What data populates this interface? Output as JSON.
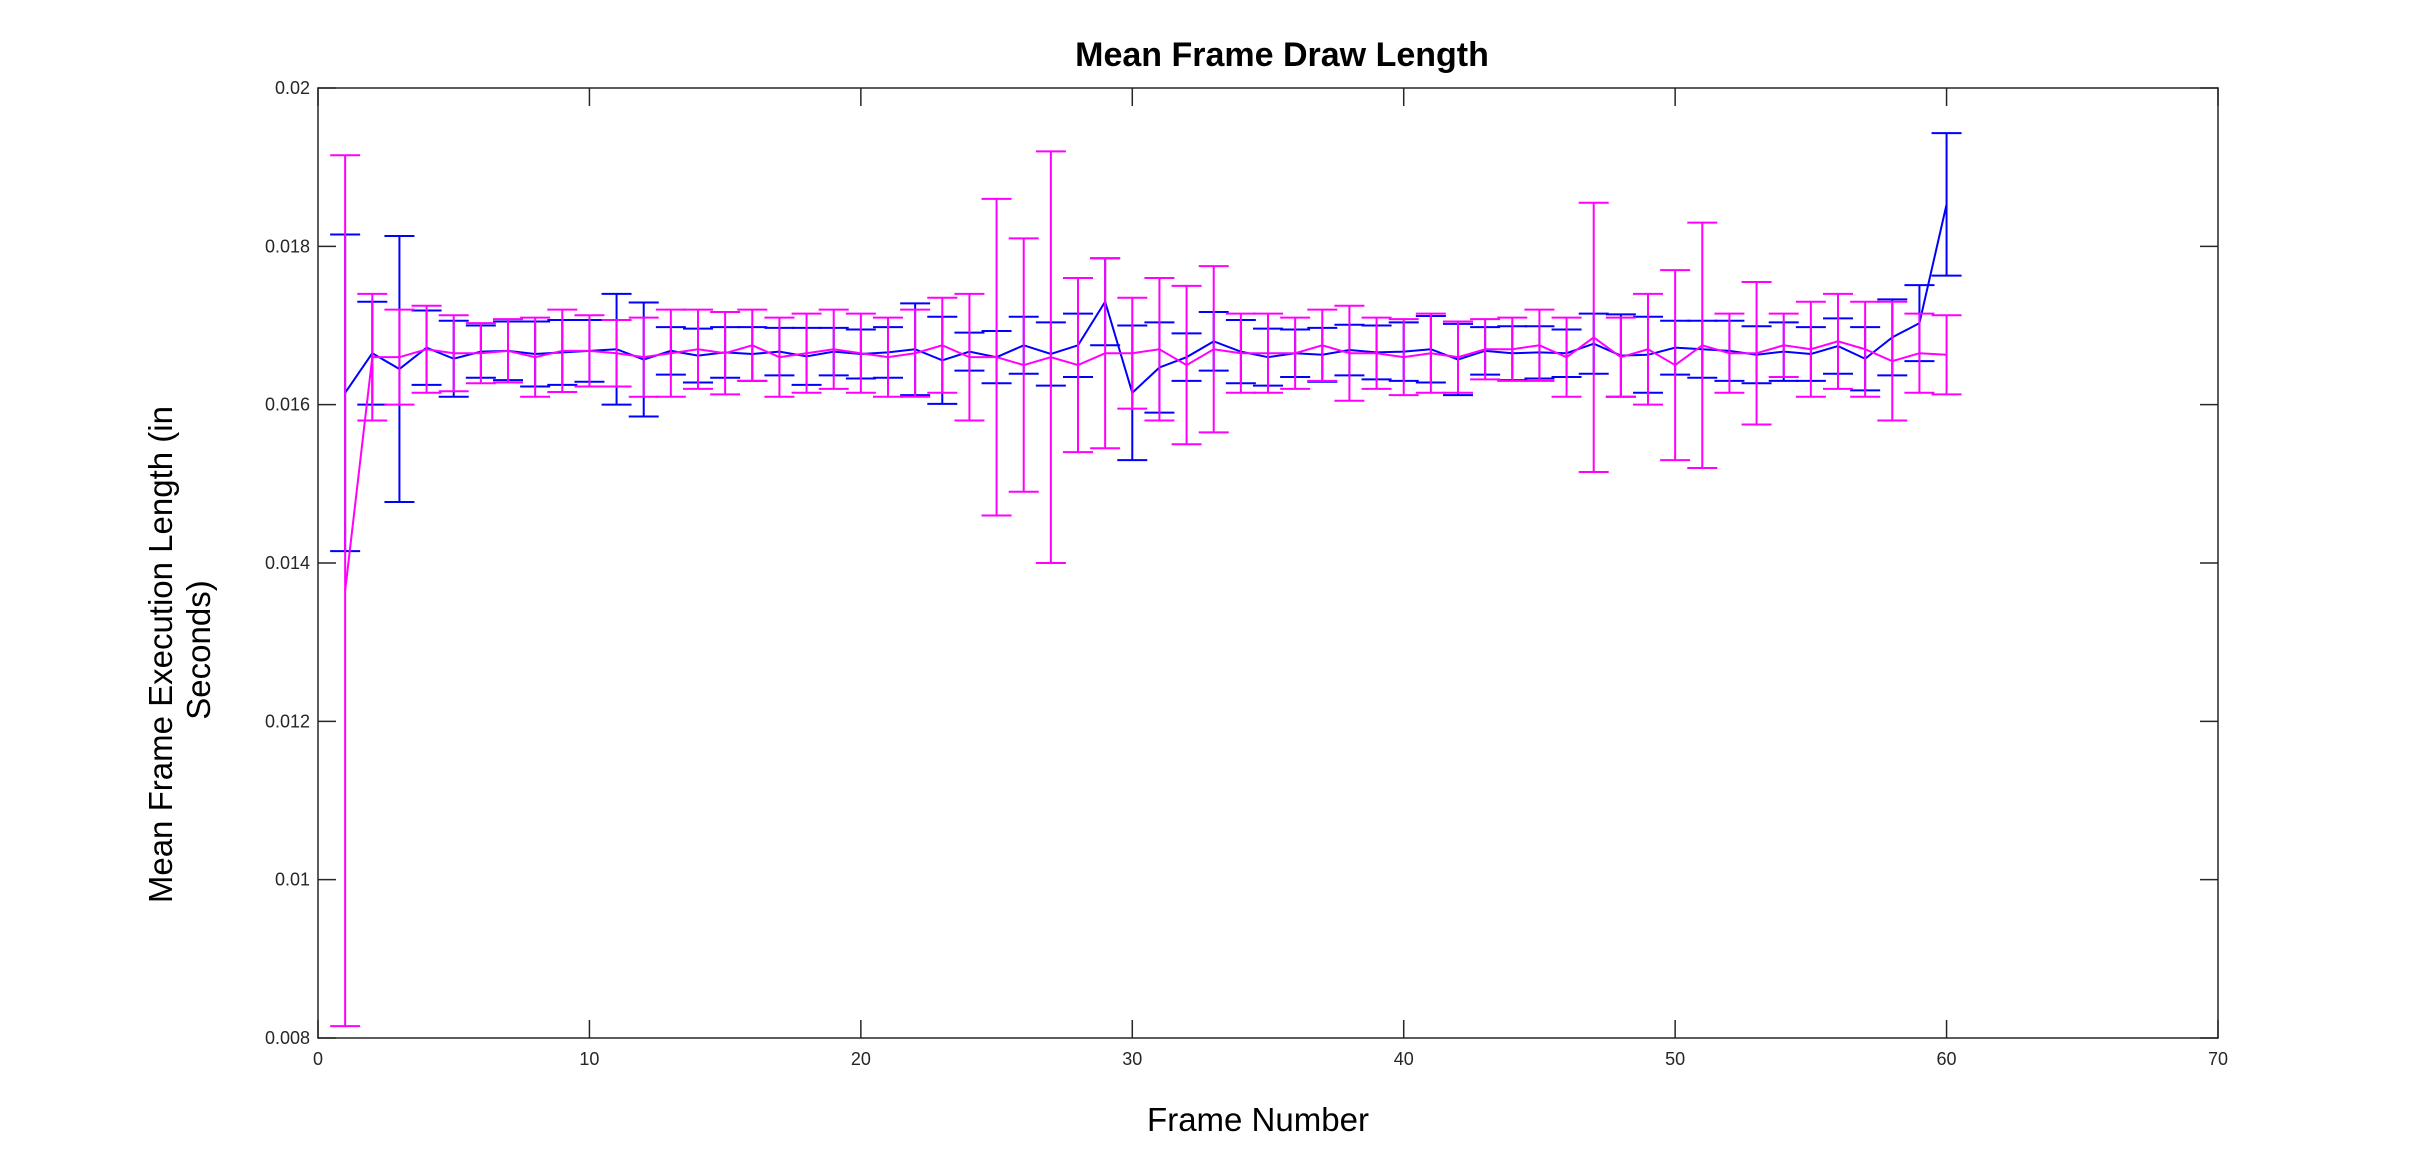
{
  "chart_data": {
    "type": "line",
    "title": "Mean Frame Draw Length",
    "xlabel": "Frame Number",
    "ylabel_lines": [
      "Mean Frame Execution Length (in",
      "Seconds)"
    ],
    "xlim": [
      0,
      70
    ],
    "ylim": [
      0.008,
      0.02
    ],
    "xticks": [
      "0",
      "10",
      "20",
      "30",
      "40",
      "50",
      "60",
      "70"
    ],
    "yticks": [
      "0.008",
      "0.01",
      "0.012",
      "0.014",
      "0.016",
      "0.018",
      "0.02"
    ],
    "grid": false,
    "legend": "none",
    "error_bars": true,
    "colors": {
      "series1": "#0000ff",
      "series2": "#ff00ff"
    },
    "series": [
      {
        "color": "#0000ff",
        "x": [
          1,
          2,
          3,
          4,
          5,
          6,
          7,
          8,
          9,
          10,
          11,
          12,
          13,
          14,
          15,
          16,
          17,
          18,
          19,
          20,
          21,
          22,
          23,
          24,
          25,
          26,
          27,
          28,
          29,
          30,
          31,
          32,
          33,
          34,
          35,
          36,
          37,
          38,
          39,
          40,
          41,
          42,
          43,
          44,
          45,
          46,
          47,
          48,
          49,
          50,
          51,
          52,
          53,
          54,
          55,
          56,
          57,
          58,
          59,
          60
        ],
        "values": [
          0.01615,
          0.01665,
          0.01645,
          0.01672,
          0.01658,
          0.01667,
          0.01668,
          0.01664,
          0.01666,
          0.01668,
          0.0167,
          0.01657,
          0.01668,
          0.01662,
          0.01666,
          0.01664,
          0.01667,
          0.01661,
          0.01667,
          0.01664,
          0.01666,
          0.0167,
          0.01656,
          0.01667,
          0.0166,
          0.01675,
          0.01664,
          0.01675,
          0.0173,
          0.01615,
          0.01647,
          0.0166,
          0.0168,
          0.01667,
          0.0166,
          0.01665,
          0.01663,
          0.01669,
          0.01666,
          0.01667,
          0.0167,
          0.01657,
          0.01668,
          0.01665,
          0.01666,
          0.01665,
          0.01677,
          0.01662,
          0.01663,
          0.01672,
          0.0167,
          0.01668,
          0.01663,
          0.01667,
          0.01664,
          0.01674,
          0.01658,
          0.01685,
          0.01703,
          0.01853
        ],
        "errors": [
          0.002,
          0.00065,
          0.00168,
          0.00047,
          0.00048,
          0.00033,
          0.00037,
          0.00041,
          0.00041,
          0.00039,
          0.0007,
          0.00072,
          0.0003,
          0.00034,
          0.00032,
          0.00034,
          0.0003,
          0.00036,
          0.0003,
          0.00031,
          0.00032,
          0.00058,
          0.00055,
          0.00024,
          0.00033,
          0.00036,
          0.0004,
          0.0004,
          0.00055,
          0.00085,
          0.00057,
          0.0003,
          0.00037,
          0.0004,
          0.00036,
          0.0003,
          0.00034,
          0.00032,
          0.00034,
          0.00037,
          0.00042,
          0.00045,
          0.0003,
          0.00034,
          0.00033,
          0.0003,
          0.00038,
          0.00052,
          0.00048,
          0.00034,
          0.00036,
          0.00038,
          0.00036,
          0.00037,
          0.00034,
          0.00035,
          0.0004,
          0.00048,
          0.00048,
          0.0009
        ]
      },
      {
        "color": "#ff00ff",
        "x": [
          1,
          2,
          3,
          4,
          5,
          6,
          7,
          8,
          9,
          10,
          11,
          12,
          13,
          14,
          15,
          16,
          17,
          18,
          19,
          20,
          21,
          22,
          23,
          24,
          25,
          26,
          27,
          28,
          29,
          30,
          31,
          32,
          33,
          34,
          35,
          36,
          37,
          38,
          39,
          40,
          41,
          42,
          43,
          44,
          45,
          46,
          47,
          48,
          49,
          50,
          51,
          52,
          53,
          54,
          55,
          56,
          57,
          58,
          59,
          60
        ],
        "values": [
          0.01365,
          0.0166,
          0.0166,
          0.0167,
          0.01665,
          0.01665,
          0.01668,
          0.0166,
          0.01668,
          0.01668,
          0.01665,
          0.0166,
          0.01665,
          0.0167,
          0.01665,
          0.01675,
          0.0166,
          0.01665,
          0.0167,
          0.01665,
          0.0166,
          0.01665,
          0.01675,
          0.0166,
          0.0166,
          0.0165,
          0.0166,
          0.0165,
          0.01665,
          0.01665,
          0.0167,
          0.0165,
          0.0167,
          0.01665,
          0.01665,
          0.01665,
          0.01675,
          0.01665,
          0.01665,
          0.0166,
          0.01665,
          0.0166,
          0.0167,
          0.0167,
          0.01675,
          0.0166,
          0.01685,
          0.0166,
          0.0167,
          0.0165,
          0.01675,
          0.01665,
          0.01665,
          0.01675,
          0.0167,
          0.0168,
          0.0167,
          0.01655,
          0.01665,
          0.01663
        ],
        "errors": [
          0.0055,
          0.0008,
          0.0006,
          0.00055,
          0.00048,
          0.00038,
          0.0004,
          0.0005,
          0.00052,
          0.00045,
          0.00042,
          0.0005,
          0.00055,
          0.0005,
          0.00052,
          0.00045,
          0.0005,
          0.0005,
          0.0005,
          0.0005,
          0.0005,
          0.00055,
          0.0006,
          0.0008,
          0.002,
          0.0016,
          0.0026,
          0.0011,
          0.0012,
          0.0007,
          0.0009,
          0.001,
          0.00105,
          0.0005,
          0.0005,
          0.00045,
          0.00045,
          0.0006,
          0.00045,
          0.00048,
          0.0005,
          0.00045,
          0.00038,
          0.0004,
          0.00045,
          0.0005,
          0.0017,
          0.0005,
          0.0007,
          0.0012,
          0.00155,
          0.0005,
          0.0009,
          0.0004,
          0.0006,
          0.0006,
          0.0006,
          0.00075,
          0.0005,
          0.0005
        ]
      }
    ]
  }
}
